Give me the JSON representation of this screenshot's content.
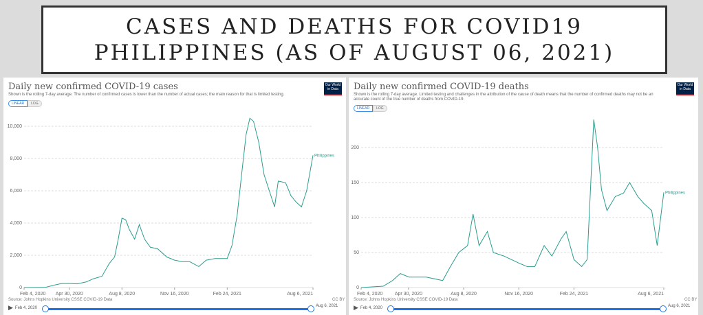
{
  "header": {
    "line1": "CASES AND DEATHS FOR COVID19",
    "line2": "PHILIPPINES (AS OF AUGUST 06, 2021)"
  },
  "common": {
    "logo": "Our World in Data",
    "linear": "LINEAR",
    "log": "LOG",
    "source": "Source: Johns Hopkins University CSSE COVID-19 Data",
    "license": "CC BY",
    "start": "Feb 4, 2020",
    "end": "Aug 6, 2021",
    "play_icon": "play-icon",
    "line_color": "#2a9d8f",
    "accent": "#1a73e8"
  },
  "chart_data": [
    {
      "type": "line",
      "title": "Daily new confirmed COVID-19 cases",
      "subtitle": "Shown is the rolling 7-day average. The number of confirmed cases is lower than the number of actual cases; the main reason for that is limited testing.",
      "xticks": [
        "Feb 4, 2020",
        "Apr 30, 2020",
        "Aug 8, 2020",
        "Nov 16, 2020",
        "Feb 24, 2021",
        "Aug 6, 2021"
      ],
      "yticks": [
        0,
        2000,
        4000,
        6000,
        8000,
        10000
      ],
      "ytick_labels": [
        "0",
        "2,000",
        "4,000",
        "6,000",
        "8,000",
        "10,000"
      ],
      "ylim": [
        0,
        10000
      ],
      "xlim": [
        "2020-02-04",
        "2021-08-06"
      ],
      "grid": true,
      "series": [
        {
          "name": "Philippines",
          "x": [
            "2020-02-04",
            "2020-03-15",
            "2020-04-01",
            "2020-04-15",
            "2020-05-01",
            "2020-05-15",
            "2020-06-01",
            "2020-06-15",
            "2020-07-01",
            "2020-07-15",
            "2020-07-25",
            "2020-08-01",
            "2020-08-08",
            "2020-08-15",
            "2020-08-22",
            "2020-09-01",
            "2020-09-10",
            "2020-09-20",
            "2020-10-01",
            "2020-10-15",
            "2020-11-01",
            "2020-11-16",
            "2020-12-01",
            "2020-12-15",
            "2021-01-01",
            "2021-01-15",
            "2021-02-01",
            "2021-02-24",
            "2021-03-05",
            "2021-03-15",
            "2021-03-25",
            "2021-04-01",
            "2021-04-08",
            "2021-04-15",
            "2021-04-25",
            "2021-05-05",
            "2021-05-15",
            "2021-05-25",
            "2021-06-01",
            "2021-06-15",
            "2021-06-25",
            "2021-07-05",
            "2021-07-15",
            "2021-07-25",
            "2021-08-06"
          ],
          "y": [
            0,
            10,
            150,
            250,
            250,
            230,
            350,
            550,
            700,
            1500,
            1900,
            3000,
            4300,
            4200,
            3600,
            3000,
            3900,
            3000,
            2500,
            2400,
            1900,
            1700,
            1600,
            1600,
            1300,
            1700,
            1800,
            1800,
            2600,
            4500,
            7500,
            9500,
            10500,
            10300,
            9000,
            7000,
            6000,
            5000,
            6600,
            6500,
            5700,
            5300,
            5000,
            6000,
            8200
          ]
        }
      ]
    },
    {
      "type": "line",
      "title": "Daily new confirmed COVID-19 deaths",
      "subtitle": "Shown is the rolling 7-day average. Limited testing and challenges in the attribution of the cause of death means that the number of confirmed deaths may not be an accurate count of the true number of deaths from COVID-19.",
      "xticks": [
        "Feb 4, 2020",
        "Apr 30, 2020",
        "Aug 8, 2020",
        "Nov 16, 2020",
        "Feb 24, 2021",
        "Aug 6, 2021"
      ],
      "yticks": [
        0,
        50,
        100,
        150,
        200
      ],
      "ytick_labels": [
        "0",
        "50",
        "100",
        "150",
        "200"
      ],
      "ylim": [
        0,
        200
      ],
      "xlim": [
        "2020-02-04",
        "2021-08-06"
      ],
      "grid": true,
      "series": [
        {
          "name": "Philippines",
          "x": [
            "2020-02-04",
            "2020-03-15",
            "2020-04-01",
            "2020-04-15",
            "2020-05-01",
            "2020-06-01",
            "2020-07-01",
            "2020-07-15",
            "2020-07-30",
            "2020-08-15",
            "2020-08-25",
            "2020-09-05",
            "2020-09-20",
            "2020-10-01",
            "2020-10-20",
            "2020-11-16",
            "2020-12-01",
            "2020-12-15",
            "2021-01-01",
            "2021-01-15",
            "2021-02-01",
            "2021-02-10",
            "2021-02-24",
            "2021-03-10",
            "2021-03-20",
            "2021-04-01",
            "2021-04-08",
            "2021-04-15",
            "2021-04-25",
            "2021-05-10",
            "2021-05-25",
            "2021-06-05",
            "2021-06-20",
            "2021-07-01",
            "2021-07-15",
            "2021-07-25",
            "2021-08-06"
          ],
          "y": [
            0,
            2,
            10,
            20,
            15,
            15,
            10,
            30,
            50,
            60,
            105,
            60,
            80,
            50,
            45,
            35,
            30,
            30,
            60,
            45,
            70,
            80,
            40,
            30,
            40,
            240,
            200,
            140,
            110,
            130,
            135,
            150,
            130,
            120,
            110,
            60,
            136
          ]
        }
      ]
    }
  ]
}
